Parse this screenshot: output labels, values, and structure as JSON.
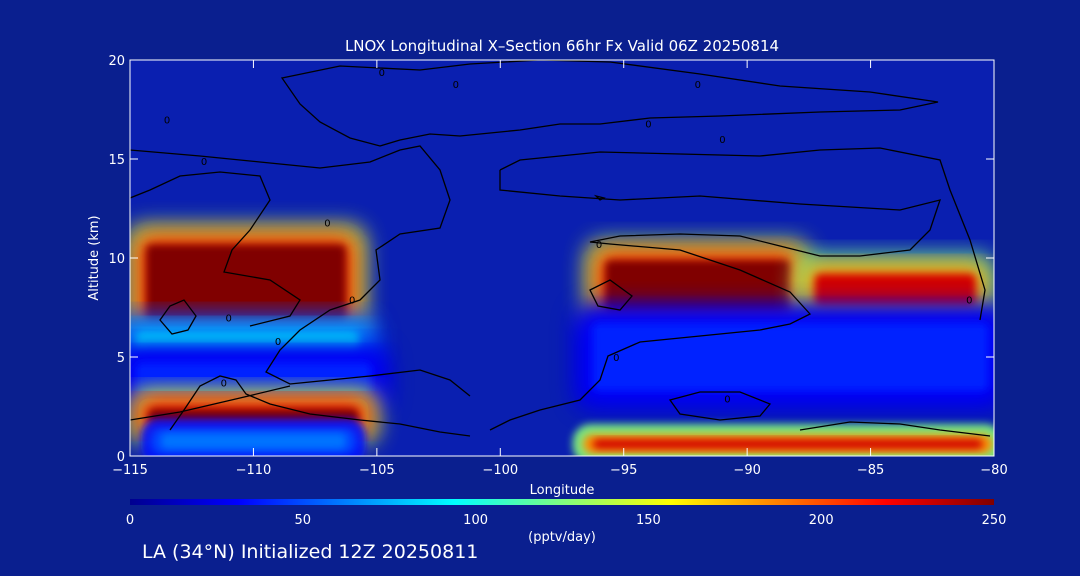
{
  "colors": {
    "background": "#0a1f8f",
    "plot_background": "#0a1fb0",
    "contour": "#000000",
    "axis": "#ffffff"
  },
  "chart_data": {
    "type": "heatmap",
    "title": "LNOX Longitudinal X–Section 66hr  Fx Valid 06Z 20250814",
    "xlabel": "Longitude",
    "ylabel": "Altitude (km)",
    "xlim": [
      -115,
      -80
    ],
    "ylim": [
      0,
      20
    ],
    "xticks": [
      -115,
      -110,
      -105,
      -100,
      -95,
      -90,
      -85,
      -80
    ],
    "xtick_labels": [
      "−115",
      "−110",
      "−105",
      "−100",
      "−95",
      "−90",
      "−85",
      "−80"
    ],
    "yticks": [
      0,
      5,
      10,
      15,
      20
    ],
    "ytick_labels": [
      "0",
      "5",
      "10",
      "15",
      "20"
    ],
    "colorbar": {
      "min": 0,
      "max": 250,
      "ticks": [
        0,
        50,
        100,
        150,
        200,
        250
      ],
      "tick_labels": [
        "0",
        "50",
        "100",
        "150",
        "200",
        "250"
      ],
      "label": "(pptv/day)",
      "colormap": "jet"
    },
    "cells": [
      {
        "lon": [
          -114.6,
          -106.0
        ],
        "alt": [
          6.5,
          11.0
        ],
        "value": 260
      },
      {
        "lon": [
          -115.0,
          -105.5
        ],
        "alt": [
          5.0,
          6.5
        ],
        "value": 90
      },
      {
        "lon": [
          -115.0,
          -105.0
        ],
        "alt": [
          2.8,
          5.0
        ],
        "value": 40
      },
      {
        "lon": [
          -114.5,
          -105.5
        ],
        "alt": [
          1.3,
          2.7
        ],
        "value": 270
      },
      {
        "lon": [
          -114.0,
          -106.0
        ],
        "alt": [
          0.3,
          1.2
        ],
        "value": 60
      },
      {
        "lon": [
          -96.0,
          -88.0
        ],
        "alt": [
          7.0,
          10.2
        ],
        "value": 260
      },
      {
        "lon": [
          -87.5,
          -80.5
        ],
        "alt": [
          7.3,
          9.5
        ],
        "value": 230
      },
      {
        "lon": [
          -96.5,
          -80.0
        ],
        "alt": [
          3.0,
          7.0
        ],
        "value": 40
      },
      {
        "lon": [
          -96.5,
          -80.2
        ],
        "alt": [
          0.3,
          0.9
        ],
        "value": 230
      }
    ],
    "contour_labels": [
      {
        "text": "0",
        "lon": -112.0,
        "alt": 14.9
      },
      {
        "text": "0",
        "lon": -107.0,
        "alt": 11.8
      },
      {
        "text": "0",
        "lon": -106.0,
        "alt": 7.9
      },
      {
        "text": "0",
        "lon": -111.0,
        "alt": 7.0
      },
      {
        "text": "0",
        "lon": -109.0,
        "alt": 5.8
      },
      {
        "text": "0",
        "lon": -111.2,
        "alt": 3.7
      },
      {
        "text": "0",
        "lon": -113.5,
        "alt": 17.0
      },
      {
        "text": "0",
        "lon": -104.8,
        "alt": 19.4
      },
      {
        "text": "0",
        "lon": -101.8,
        "alt": 18.8
      },
      {
        "text": "0",
        "lon": -94.0,
        "alt": 16.8
      },
      {
        "text": "0",
        "lon": -91.0,
        "alt": 16.0
      },
      {
        "text": "0",
        "lon": -92.0,
        "alt": 18.8
      },
      {
        "text": "0",
        "lon": -96.0,
        "alt": 10.7
      },
      {
        "text": "0",
        "lon": -95.3,
        "alt": 5.0
      },
      {
        "text": "0",
        "lon": -90.8,
        "alt": 2.9
      },
      {
        "text": "0",
        "lon": -81.0,
        "alt": 7.9
      }
    ]
  },
  "footer": {
    "text": "LA (34°N) Initialized 12Z 20250811"
  }
}
